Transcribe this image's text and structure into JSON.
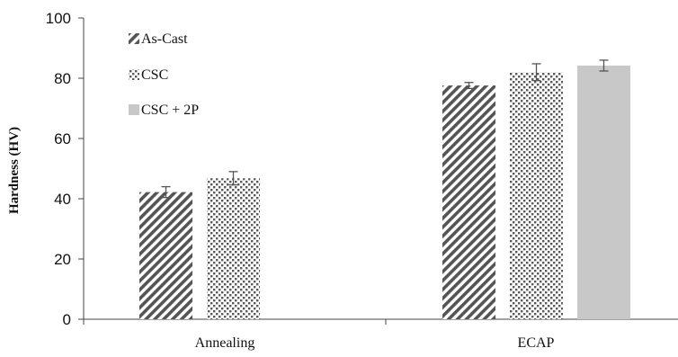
{
  "chart_data": {
    "type": "bar",
    "title": "",
    "xlabel": "",
    "ylabel": "Hardness (HV)",
    "ylim": [
      0,
      100
    ],
    "yticks": [
      0,
      20,
      40,
      60,
      80,
      100
    ],
    "grid": false,
    "legend_position": "top-left",
    "categories": [
      "Annealing",
      "ECAP"
    ],
    "series": [
      {
        "name": "As-Cast",
        "pattern": "diagonal-hatch",
        "color": "#555555",
        "values": [
          42.2,
          77.6
        ],
        "errors": [
          1.8,
          1.0
        ]
      },
      {
        "name": "CSC",
        "pattern": "dots",
        "color": "#555555",
        "values": [
          46.8,
          82.0
        ],
        "errors": [
          2.2,
          2.8
        ]
      },
      {
        "name": "CSC + 2P",
        "pattern": "solid",
        "color": "#c8c8c8",
        "values": [
          null,
          84.2
        ],
        "errors": [
          null,
          1.8
        ]
      }
    ]
  }
}
